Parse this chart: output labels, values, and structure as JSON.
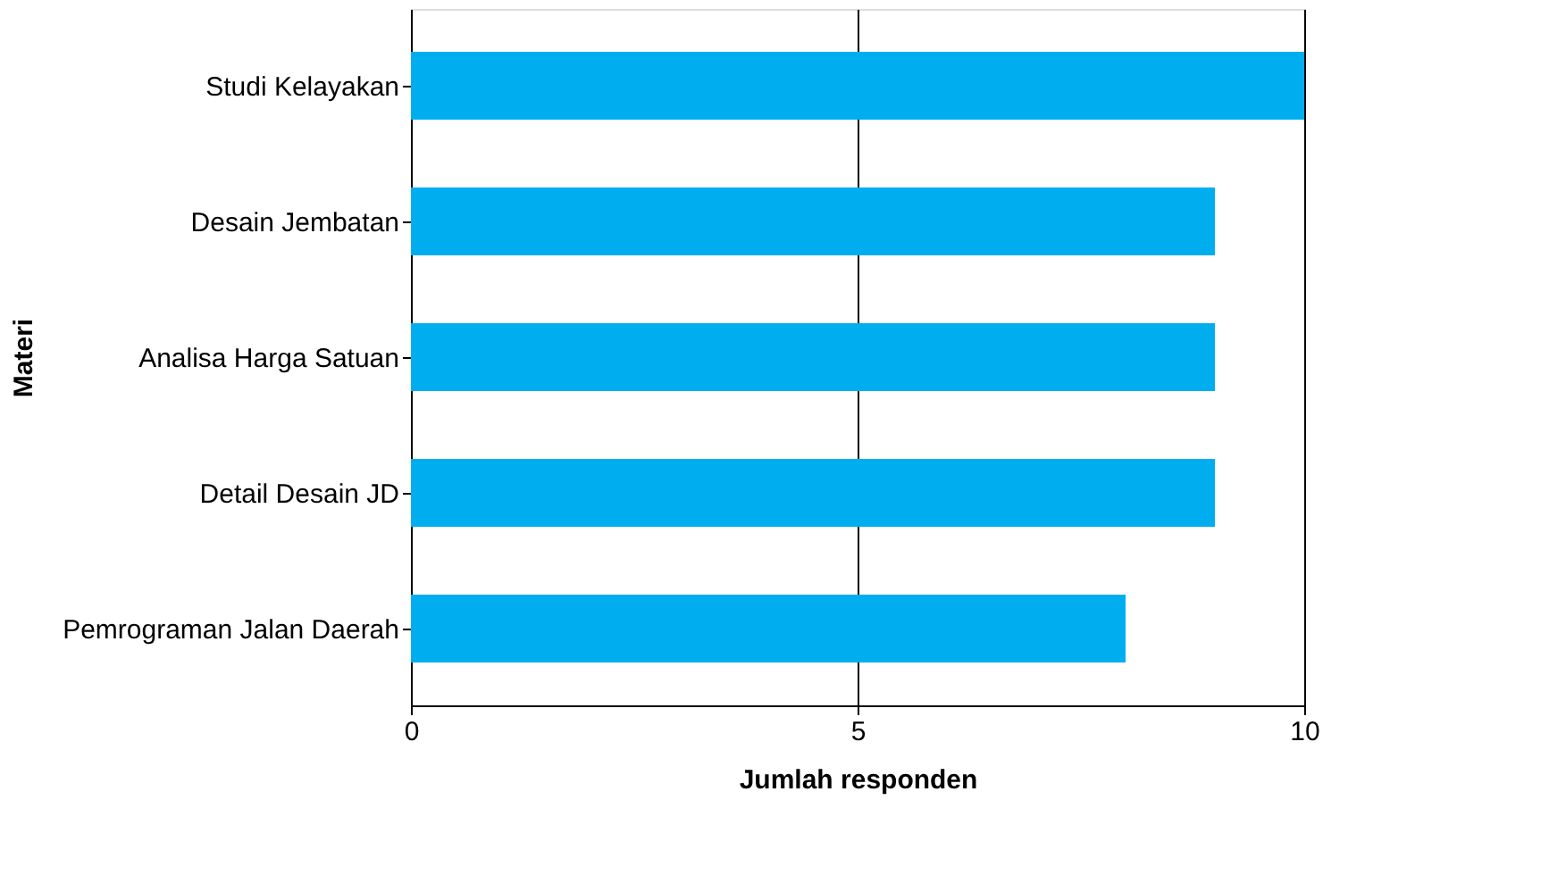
{
  "chart_data": {
    "type": "bar",
    "orientation": "horizontal",
    "xlabel": "Jumlah responden",
    "ylabel": "Materi",
    "categories": [
      "Studi Kelayakan",
      "Desain Jembatan",
      "Analisa Harga Satuan",
      "Detail Desain JD",
      "Pemrograman Jalan Daerah"
    ],
    "values": [
      10,
      9,
      9,
      9,
      8
    ],
    "color": "#00aeef",
    "xlim": [
      0,
      10
    ],
    "xticks": [
      0,
      5,
      10
    ],
    "grid": "x"
  }
}
